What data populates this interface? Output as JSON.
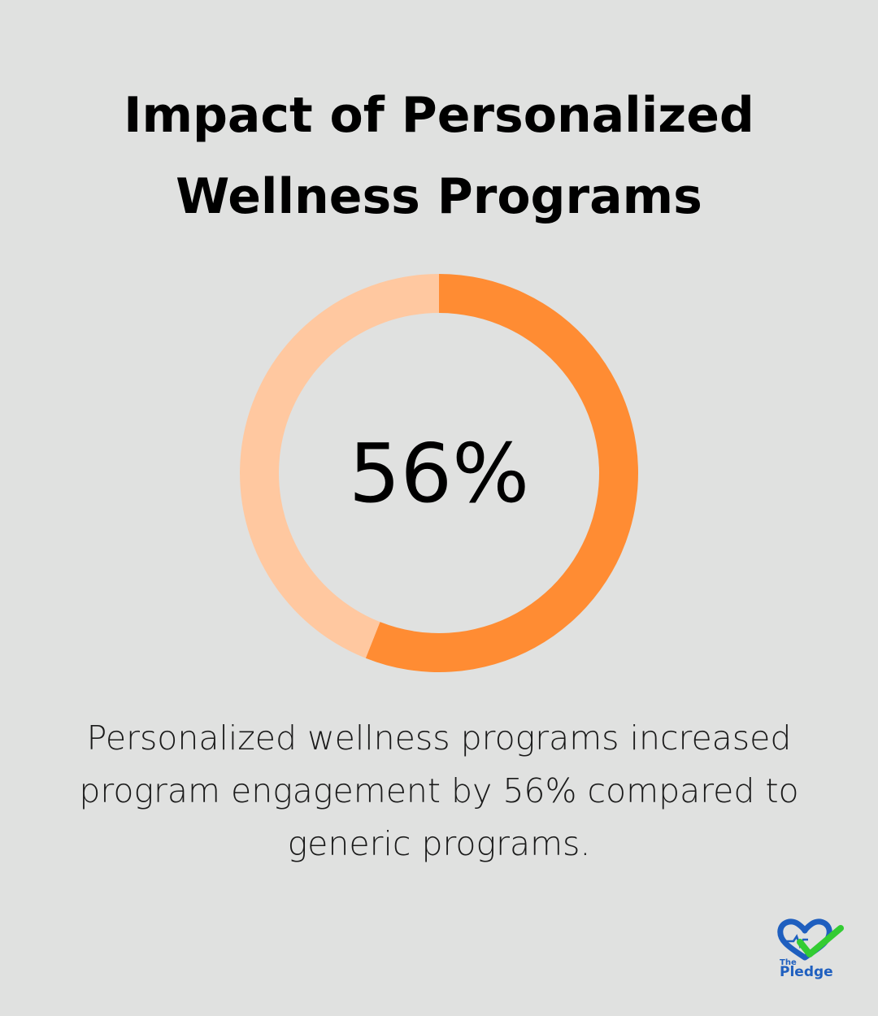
{
  "title": {
    "line1": "Impact of Personalized",
    "line2": "Wellness Programs"
  },
  "chart_data": {
    "type": "pie",
    "variant": "donut",
    "title": "Impact of Personalized Wellness Programs",
    "center_label": "56%",
    "slices": [
      {
        "name": "",
        "value": 56,
        "color": "#ff8c33"
      },
      {
        "name": "",
        "value": 44,
        "color": "#ffc8a0"
      }
    ],
    "start": "top",
    "direction": "clockwise"
  },
  "caption": {
    "line1": "Personalized wellness programs increased",
    "line2": "program engagement by 56% compared to",
    "line3": "generic programs."
  },
  "logo": {
    "the": "The",
    "name": "Pledge",
    "heart_color": "#1f5fbf",
    "check_color": "#33cc33"
  },
  "colors": {
    "background": "#e0e1e0",
    "accent": "#ff8c33",
    "accent_light": "#ffc8a0"
  }
}
